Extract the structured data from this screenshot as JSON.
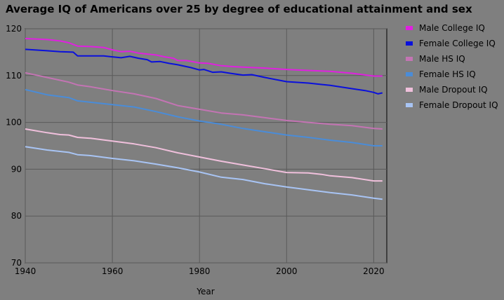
{
  "chart_data": {
    "type": "line",
    "title": "Average IQ of Americans over 25 by degree of educational attainment and sex",
    "xlabel": "Year",
    "ylabel": "",
    "xlim": [
      1940,
      2023
    ],
    "ylim": [
      70,
      120
    ],
    "xticks": [
      1940,
      1960,
      1980,
      2000,
      2020
    ],
    "yticks": [
      70,
      80,
      90,
      100,
      110,
      120
    ],
    "grid": true,
    "legend_position": "right",
    "series": [
      {
        "name": "Male College IQ",
        "color": "#e020e0",
        "x": [
          1940,
          1945,
          1948,
          1950,
          1952,
          1955,
          1958,
          1960,
          1962,
          1964,
          1966,
          1968,
          1970,
          1972,
          1974,
          1975,
          1977,
          1980,
          1982,
          1985,
          1988,
          1990,
          1995,
          2000,
          2005,
          2010,
          2015,
          2020,
          2022
        ],
        "y": [
          117.9,
          117.7,
          117.4,
          117.0,
          116.3,
          116.2,
          116.0,
          115.5,
          115.1,
          115.2,
          114.8,
          114.6,
          114.4,
          114.0,
          113.7,
          113.2,
          113.2,
          112.7,
          112.6,
          112.1,
          111.9,
          111.8,
          111.6,
          111.3,
          111.1,
          110.9,
          110.5,
          109.9,
          109.9
        ]
      },
      {
        "name": "Female College IQ",
        "color": "#0a10dc",
        "x": [
          1940,
          1945,
          1948,
          1951,
          1952,
          1955,
          1958,
          1960,
          1962,
          1964,
          1966,
          1968,
          1969,
          1971,
          1973,
          1975,
          1978,
          1980,
          1981,
          1983,
          1985,
          1987,
          1990,
          1992,
          1995,
          2000,
          2005,
          2008,
          2010,
          2015,
          2018,
          2020,
          2021,
          2022
        ],
        "y": [
          115.6,
          115.3,
          115.1,
          115.0,
          114.2,
          114.2,
          114.2,
          114.0,
          113.8,
          114.1,
          113.7,
          113.4,
          112.9,
          113.0,
          112.6,
          112.3,
          111.7,
          111.2,
          111.3,
          110.7,
          110.8,
          110.5,
          110.1,
          110.2,
          109.6,
          108.7,
          108.4,
          108.1,
          107.9,
          107.2,
          106.8,
          106.4,
          106.1,
          106.3
        ]
      },
      {
        "name": "Male HS IQ",
        "color": "#c474b4",
        "x": [
          1940,
          1945,
          1950,
          1952,
          1955,
          1960,
          1965,
          1970,
          1975,
          1980,
          1985,
          1990,
          1995,
          2000,
          2005,
          2010,
          2015,
          2020,
          2022
        ],
        "y": [
          110.6,
          109.6,
          108.6,
          108.0,
          107.6,
          106.8,
          106.1,
          105.1,
          103.6,
          102.8,
          102.0,
          101.6,
          101.0,
          100.4,
          100.0,
          99.6,
          99.3,
          98.7,
          98.6
        ]
      },
      {
        "name": "Female HS IQ",
        "color": "#4a8cd8",
        "x": [
          1940,
          1945,
          1950,
          1952,
          1955,
          1960,
          1965,
          1970,
          1975,
          1980,
          1985,
          1990,
          1995,
          2000,
          2005,
          2010,
          2015,
          2020,
          2022
        ],
        "y": [
          107.0,
          105.9,
          105.3,
          104.6,
          104.3,
          103.8,
          103.3,
          102.3,
          101.2,
          100.3,
          99.6,
          98.7,
          98.0,
          97.3,
          96.8,
          96.2,
          95.7,
          95.0,
          95.0
        ]
      },
      {
        "name": "Male Dropout IQ",
        "color": "#f0c0dc",
        "x": [
          1940,
          1945,
          1948,
          1950,
          1952,
          1955,
          1960,
          1965,
          1970,
          1975,
          1980,
          1985,
          1990,
          1995,
          2000,
          2005,
          2008,
          2010,
          2015,
          2020,
          2022
        ],
        "y": [
          98.6,
          97.8,
          97.4,
          97.3,
          96.8,
          96.6,
          96.0,
          95.4,
          94.6,
          93.5,
          92.6,
          91.7,
          90.9,
          90.1,
          89.3,
          89.2,
          88.9,
          88.6,
          88.2,
          87.5,
          87.5
        ]
      },
      {
        "name": "Female Dropout IQ",
        "color": "#a8c4f4",
        "x": [
          1940,
          1945,
          1950,
          1952,
          1955,
          1960,
          1965,
          1970,
          1975,
          1980,
          1985,
          1990,
          1995,
          2000,
          2005,
          2010,
          2015,
          2020,
          2022
        ],
        "y": [
          94.8,
          94.1,
          93.6,
          93.1,
          92.9,
          92.3,
          91.8,
          91.1,
          90.3,
          89.4,
          88.3,
          87.8,
          86.9,
          86.2,
          85.6,
          85.0,
          84.5,
          83.8,
          83.6
        ]
      }
    ]
  }
}
